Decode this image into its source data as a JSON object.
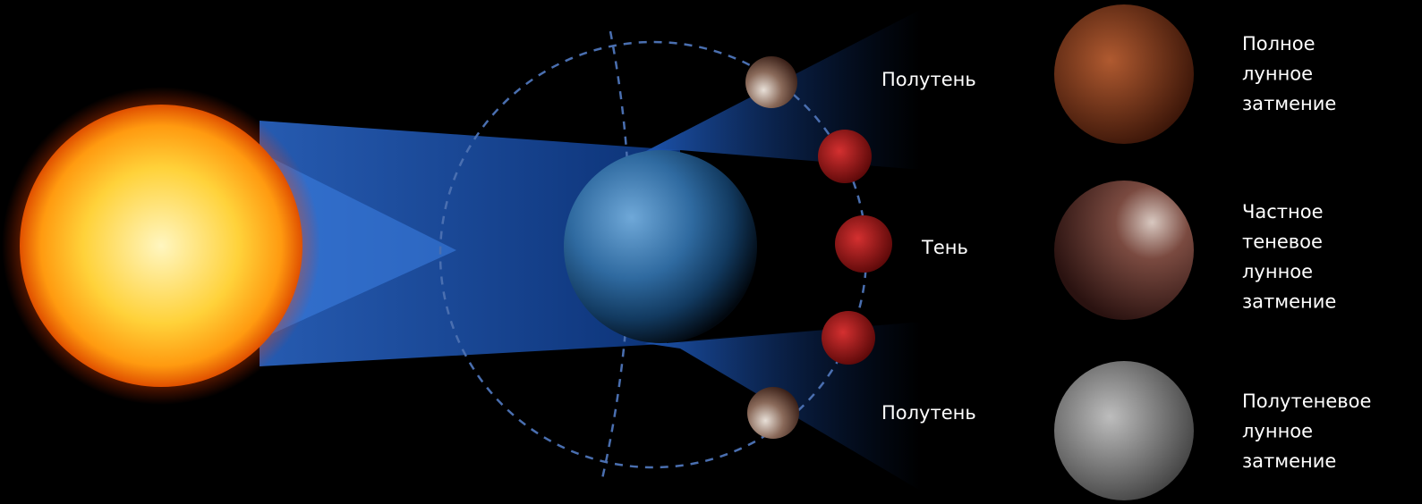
{
  "diagram_labels": [
    "Полутень",
    "Тень",
    "Полутень"
  ],
  "legend": [
    {
      "lines": [
        "Полное",
        "лунное",
        "затмение"
      ]
    },
    {
      "lines": [
        "Частное",
        "теневое",
        "лунное",
        "затмение"
      ]
    },
    {
      "lines": [
        "Полутеневое",
        "лунное",
        "затмение"
      ]
    }
  ]
}
